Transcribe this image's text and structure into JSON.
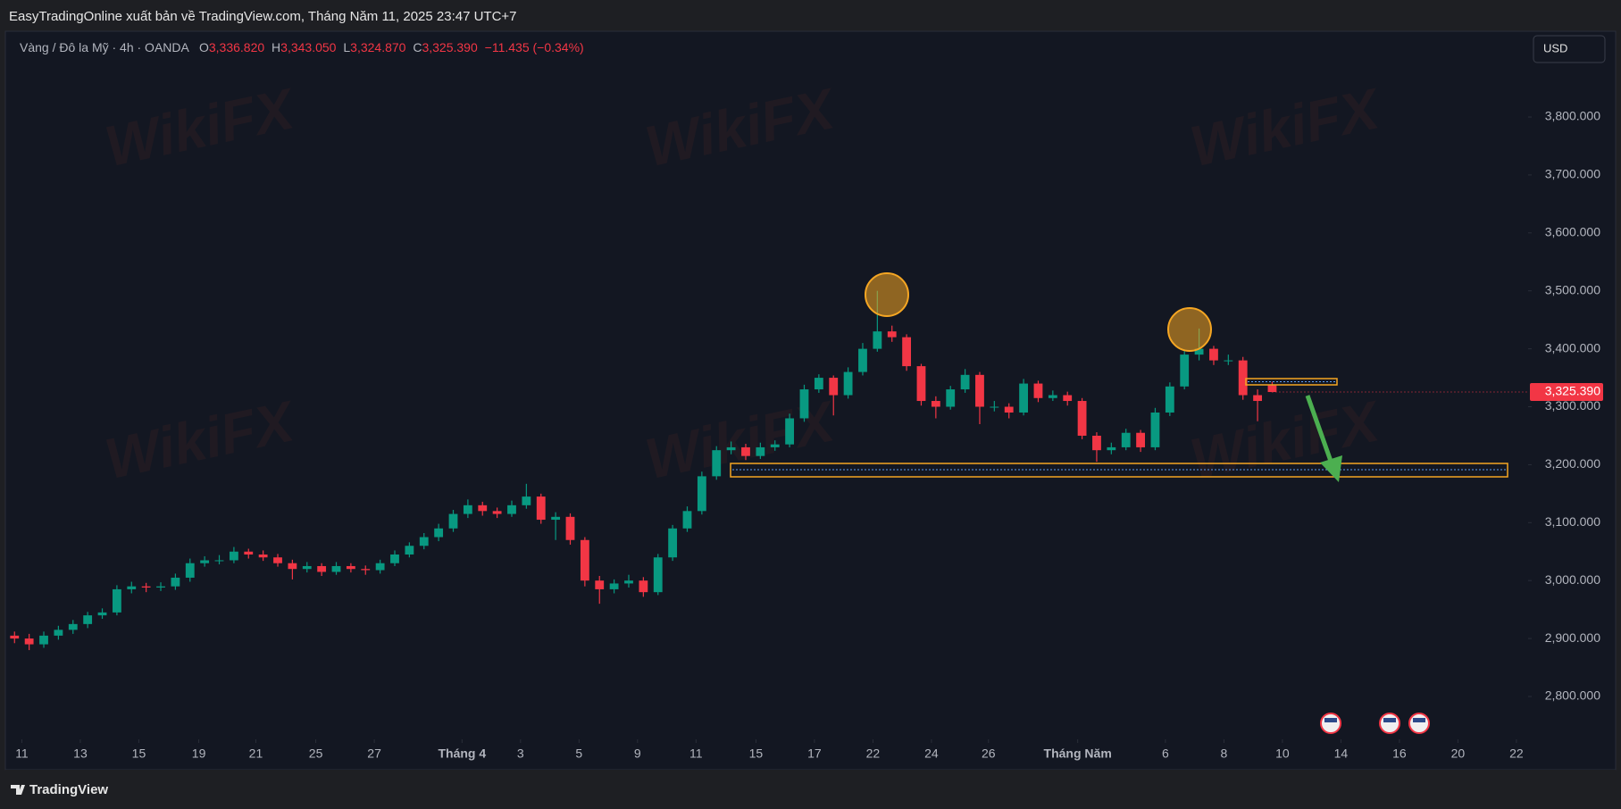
{
  "header": {
    "title": "EasyTradingOnline xuất bản về TradingView.com, Tháng Năm 11, 2025 23:47 UTC+7"
  },
  "symbol": {
    "name": "Vàng / Đô la Mỹ · 4h · OANDA",
    "ohlc": [
      {
        "key": "O",
        "value": "3,336.820"
      },
      {
        "key": "H",
        "value": "3,343.050"
      },
      {
        "key": "L",
        "value": "3,324.870"
      },
      {
        "key": "C",
        "value": "3,325.390"
      }
    ],
    "change": "−11.435 (−0.34%)"
  },
  "currency": "USD",
  "footer": {
    "brand": "TradingView"
  },
  "watermark": "WikiFX",
  "chart_data": {
    "type": "candlestick",
    "open": [
      2905,
      2900,
      2890,
      2905,
      2915,
      2925,
      2940,
      2945,
      2985,
      2990,
      2988,
      2990,
      3005,
      3030,
      3035,
      3035,
      3050,
      3045,
      3040,
      3030,
      3020,
      3025,
      3015,
      3025,
      3020,
      3018,
      3030,
      3045,
      3060,
      3075,
      3090,
      3115,
      3130,
      3120,
      3115,
      3130,
      3145,
      3105,
      3110,
      3070,
      3000,
      2985,
      2995,
      3000,
      2980,
      3040,
      3090,
      3120,
      3180,
      3225,
      3230,
      3215,
      3230,
      3235,
      3280,
      3330,
      3350,
      3320,
      3360,
      3400,
      3430,
      3420,
      3370,
      3310,
      3300,
      3330,
      3355,
      3300,
      3300,
      3290,
      3340,
      3315,
      3320,
      3310,
      3250,
      3225,
      3230,
      3255,
      3230,
      3290,
      3335,
      3390,
      3400,
      3380,
      3380,
      3320,
      3336.82
    ],
    "high": [
      2912,
      2908,
      2912,
      2922,
      2932,
      2946,
      2952,
      2992,
      2998,
      2996,
      2997,
      3012,
      3038,
      3042,
      3044,
      3058,
      3055,
      3052,
      3046,
      3036,
      3032,
      3030,
      3032,
      3030,
      3026,
      3036,
      3052,
      3066,
      3082,
      3098,
      3122,
      3140,
      3136,
      3126,
      3138,
      3167,
      3150,
      3118,
      3116,
      3075,
      3008,
      3002,
      3010,
      3006,
      3046,
      3096,
      3128,
      3188,
      3232,
      3240,
      3236,
      3238,
      3242,
      3288,
      3338,
      3356,
      3354,
      3368,
      3410,
      3500,
      3440,
      3425,
      3374,
      3318,
      3336,
      3365,
      3360,
      3310,
      3306,
      3348,
      3345,
      3328,
      3326,
      3315,
      3256,
      3238,
      3262,
      3260,
      3298,
      3342,
      3398,
      3435,
      3405,
      3390,
      3386,
      3330,
      3343.05
    ],
    "low": [
      2892,
      2880,
      2884,
      2898,
      2908,
      2918,
      2934,
      2940,
      2978,
      2980,
      2982,
      2984,
      2998,
      3024,
      3028,
      3030,
      3038,
      3034,
      3024,
      3002,
      3014,
      3008,
      3010,
      3014,
      3010,
      3012,
      3025,
      3040,
      3054,
      3068,
      3084,
      3108,
      3112,
      3108,
      3110,
      3124,
      3098,
      3070,
      3062,
      2990,
      2960,
      2978,
      2988,
      2972,
      2975,
      3034,
      3084,
      3114,
      3174,
      3218,
      3208,
      3210,
      3224,
      3230,
      3274,
      3324,
      3285,
      3314,
      3354,
      3395,
      3412,
      3362,
      3302,
      3280,
      3295,
      3324,
      3270,
      3292,
      3280,
      3285,
      3308,
      3310,
      3302,
      3244,
      3205,
      3218,
      3225,
      3222,
      3225,
      3284,
      3330,
      3380,
      3372,
      3372,
      3312,
      3275,
      3324.87
    ],
    "close": [
      2900,
      2890,
      2905,
      2915,
      2925,
      2940,
      2945,
      2985,
      2990,
      2988,
      2990,
      3005,
      3030,
      3035,
      3035,
      3050,
      3045,
      3040,
      3030,
      3020,
      3025,
      3015,
      3025,
      3020,
      3018,
      3030,
      3045,
      3060,
      3075,
      3090,
      3115,
      3130,
      3120,
      3115,
      3130,
      3145,
      3105,
      3110,
      3070,
      3000,
      2985,
      2995,
      3000,
      2980,
      3040,
      3090,
      3120,
      3180,
      3225,
      3230,
      3215,
      3230,
      3235,
      3280,
      3330,
      3350,
      3320,
      3360,
      3400,
      3430,
      3420,
      3370,
      3310,
      3300,
      3330,
      3355,
      3300,
      3300,
      3290,
      3340,
      3315,
      3320,
      3310,
      3250,
      3225,
      3230,
      3255,
      3230,
      3290,
      3335,
      3390,
      3400,
      3380,
      3380,
      3320,
      3310,
      3325.39
    ],
    "up_color": "#089981",
    "down_color": "#f23645",
    "xlim": [
      -0.2,
      103.5
    ],
    "xticks": [
      {
        "value": 0.5,
        "label": "11"
      },
      {
        "value": 4.5,
        "label": "13"
      },
      {
        "value": 8.5,
        "label": "15"
      },
      {
        "value": 12.6,
        "label": "19"
      },
      {
        "value": 16.5,
        "label": "21"
      },
      {
        "value": 20.6,
        "label": "25"
      },
      {
        "value": 24.6,
        "label": "27"
      },
      {
        "value": 30.6,
        "label": "Tháng 4"
      },
      {
        "value": 34.6,
        "label": "3"
      },
      {
        "value": 38.6,
        "label": "5"
      },
      {
        "value": 42.6,
        "label": "9"
      },
      {
        "value": 46.6,
        "label": "11"
      },
      {
        "value": 50.7,
        "label": "15"
      },
      {
        "value": 54.7,
        "label": "17"
      },
      {
        "value": 58.7,
        "label": "22"
      },
      {
        "value": 62.7,
        "label": "24"
      },
      {
        "value": 66.6,
        "label": "26"
      },
      {
        "value": 72.7,
        "label": "Tháng Năm"
      },
      {
        "value": 78.7,
        "label": "6"
      },
      {
        "value": 82.7,
        "label": "8"
      },
      {
        "value": 86.7,
        "label": "10"
      },
      {
        "value": 90.7,
        "label": "14"
      },
      {
        "value": 94.7,
        "label": "16"
      },
      {
        "value": 98.7,
        "label": "20"
      },
      {
        "value": 102.7,
        "label": "22"
      }
    ],
    "ylim": [
      2726,
      3948
    ],
    "yticks": [
      {
        "value": 2800,
        "label": "2,800.000"
      },
      {
        "value": 2900,
        "label": "2,900.000"
      },
      {
        "value": 3000,
        "label": "3,000.000"
      },
      {
        "value": 3100,
        "label": "3,100.000"
      },
      {
        "value": 3200,
        "label": "3,200.000"
      },
      {
        "value": 3300,
        "label": "3,300.000"
      },
      {
        "value": 3400,
        "label": "3,400.000"
      },
      {
        "value": 3500,
        "label": "3,500.000"
      },
      {
        "value": 3600,
        "label": "3,600.000"
      },
      {
        "value": 3700,
        "label": "3,700.000"
      },
      {
        "value": 3800,
        "label": "3,800.000"
      }
    ],
    "last_price_label": "3,325.390"
  }
}
